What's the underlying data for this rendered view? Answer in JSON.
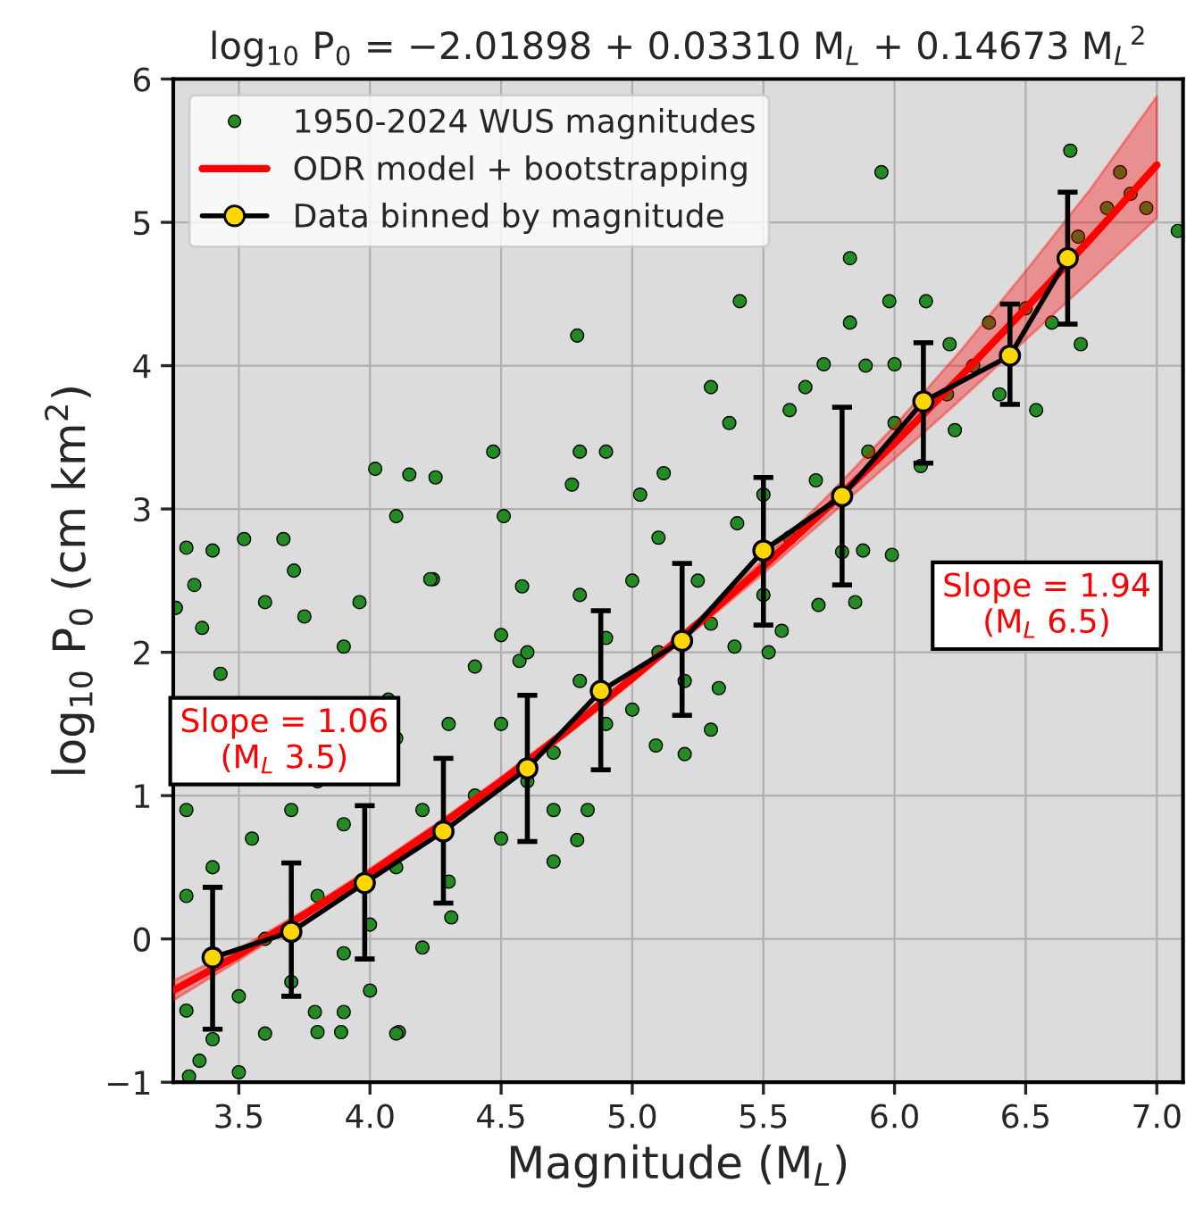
{
  "chart_data": {
    "type": "scatter",
    "title": "log$_{10}$ P$_{0}$ = −2.01898 + 0.03310 M$_{L}$ + 0.14673 M$_{L}$$^{2}$",
    "xlabel": "Magnitude (M$_{L}$)",
    "ylabel": "log$_{10}$ P$_{0}$ (cm km$^{2}$)",
    "xlim": [
      3.25,
      7.1
    ],
    "ylim": [
      -1,
      6
    ],
    "xticks": [
      3.5,
      {
        "value": 4,
        "label": "4.0"
      },
      4.5,
      {
        "value": 5,
        "label": "5.0"
      },
      5.5,
      {
        "value": 6,
        "label": "6.0"
      },
      6.5,
      {
        "value": 7,
        "label": "7.0"
      }
    ],
    "yticks": [
      {
        "value": -1,
        "label": "−1"
      },
      0,
      1,
      2,
      3,
      4,
      5,
      6
    ],
    "grid": true,
    "legend": "top left",
    "annotations": [
      "Slope = 1.06\n(M$_{L}$ 3.5)",
      "Slope = 1.94\n(M$_{L}$ 6.5)"
    ],
    "series": [
      {
        "name": "1950-2024 WUS magnitudes",
        "color": "#228b22",
        "marker": "circle",
        "x": [
          5.95,
          6.67,
          7.08,
          4.79,
          5.83,
          5.41,
          5.98,
          6.12,
          5.83,
          4.47,
          4.8,
          4.9,
          4.02,
          4.15,
          4.25,
          4.77,
          6.86,
          6.96,
          6.81,
          6.36,
          6.71,
          6.54,
          6.21,
          5.73,
          5.89,
          6.23,
          5.3,
          5.37,
          3.3,
          3.52,
          3.67,
          4.1,
          3.4,
          3.71,
          3.96,
          4.24,
          4.51,
          4.58,
          5.12,
          5.03,
          5.6,
          5.66,
          6.0,
          4.11,
          4.0,
          3.8,
          3.89,
          3.5,
          3.31,
          4.1,
          3.6,
          3.35,
          3.79,
          3.9,
          5.2,
          5.3,
          5.09,
          4.83,
          4.79,
          4.7,
          4.31,
          4.2,
          5.57,
          5.85,
          5.99,
          5.71,
          5.52,
          5.88,
          5.39,
          5.33,
          4.5,
          4.23,
          3.75,
          3.36,
          3.26,
          3.33,
          3.6,
          3.9,
          4.57,
          4.07,
          3.43,
          3.3,
          3.3,
          3.3,
          3.4,
          3.4,
          3.5,
          3.55,
          3.6,
          3.7,
          3.7,
          3.8,
          3.8,
          3.9,
          3.9,
          4.0,
          4.1,
          4.1,
          4.2,
          4.3,
          4.3,
          4.4,
          4.4,
          4.5,
          4.5,
          4.6,
          4.6,
          4.7,
          4.7,
          4.8,
          4.8,
          4.9,
          4.9,
          5.0,
          5.0,
          5.1,
          5.1,
          5.2,
          5.25,
          5.3,
          5.4,
          5.5,
          5.5,
          5.6,
          5.7,
          5.8,
          5.9,
          6.0,
          6.1,
          6.2,
          6.3,
          6.4,
          6.5,
          6.6,
          6.7,
          6.9
        ],
        "values": [
          5.35,
          5.5,
          4.94,
          4.21,
          4.75,
          4.45,
          4.45,
          4.45,
          4.3,
          3.4,
          3.4,
          3.4,
          3.28,
          3.24,
          3.22,
          3.17,
          5.35,
          5.1,
          5.1,
          4.3,
          4.15,
          3.69,
          4.15,
          4.01,
          4.0,
          3.55,
          3.85,
          3.6,
          2.73,
          2.79,
          2.79,
          2.95,
          2.71,
          2.57,
          2.35,
          2.51,
          2.95,
          2.46,
          3.25,
          3.1,
          3.69,
          3.85,
          4.01,
          -0.65,
          -0.36,
          -0.65,
          -0.65,
          -0.93,
          -0.96,
          -0.66,
          -0.66,
          -0.85,
          -0.51,
          -0.51,
          1.29,
          1.46,
          1.35,
          0.9,
          0.69,
          0.54,
          0.15,
          -0.06,
          2.15,
          2.35,
          2.68,
          2.33,
          2.0,
          2.71,
          2.04,
          1.75,
          2.12,
          2.51,
          2.25,
          2.17,
          2.31,
          2.47,
          2.35,
          2.04,
          1.94,
          1.67,
          1.85,
          -0.5,
          0.3,
          0.9,
          -0.7,
          0.5,
          -0.4,
          0.7,
          0.0,
          -0.3,
          0.9,
          0.3,
          1.1,
          -0.1,
          0.8,
          0.1,
          0.5,
          1.4,
          0.9,
          0.4,
          1.5,
          1.0,
          1.9,
          0.7,
          1.5,
          1.1,
          2.0,
          1.3,
          0.9,
          1.8,
          2.4,
          1.5,
          2.1,
          1.6,
          2.5,
          2.0,
          2.8,
          1.8,
          2.5,
          2.2,
          2.9,
          2.4,
          3.1,
          2.8,
          3.2,
          2.7,
          3.4,
          3.6,
          3.3,
          3.8,
          4.0,
          3.8,
          4.4,
          4.3,
          4.9,
          5.2
        ]
      },
      {
        "name": "ODR model + bootstrapping",
        "type": "line",
        "color": "#ff0000",
        "marker": "none",
        "line_style": "solid",
        "x": [
          3.25,
          3.5,
          3.75,
          4.0,
          4.25,
          4.5,
          4.75,
          5.0,
          5.25,
          5.5,
          5.75,
          6.0,
          6.25,
          6.5,
          6.75,
          7.0
        ],
        "values": [
          -0.36,
          -0.11,
          0.17,
          0.46,
          0.77,
          1.1,
          1.45,
          1.82,
          2.2,
          2.6,
          3.02,
          3.46,
          3.92,
          4.4,
          4.89,
          5.4
        ],
        "lower": [
          -0.43,
          -0.15,
          0.14,
          0.43,
          0.74,
          1.07,
          1.42,
          1.79,
          2.17,
          2.55,
          2.95,
          3.35,
          3.76,
          4.18,
          4.6,
          5.03
        ],
        "upper": [
          -0.29,
          -0.07,
          0.2,
          0.49,
          0.8,
          1.13,
          1.48,
          1.85,
          2.23,
          2.65,
          3.1,
          3.58,
          4.1,
          4.66,
          5.24,
          5.88
        ]
      },
      {
        "name": "Data binned by magnitude",
        "type": "line",
        "color": "#000000",
        "marker": "circle",
        "line_style": "solid",
        "colors": [
          "#ffd700",
          "#ffd700",
          "#ffd700",
          "#ffd700",
          "#ffd700",
          "#ffd700",
          "#ffd700",
          "#ffd700",
          "#ffd700",
          "#ffd700",
          "#ffd700",
          "#ffd700"
        ],
        "x": [
          3.4,
          3.7,
          3.98,
          4.28,
          4.6,
          4.88,
          5.19,
          5.5,
          5.8,
          6.11,
          6.44,
          6.66
        ],
        "values": [
          -0.13,
          0.05,
          0.39,
          0.75,
          1.19,
          1.73,
          2.08,
          2.71,
          3.09,
          3.75,
          4.07,
          4.75
        ],
        "errors": [
          [
            -0.63,
            0.36
          ],
          [
            -0.4,
            0.53
          ],
          [
            -0.14,
            0.93
          ],
          [
            0.25,
            1.26
          ],
          [
            0.68,
            1.7
          ],
          [
            1.18,
            2.29
          ],
          [
            1.56,
            2.62
          ],
          [
            2.19,
            3.22
          ],
          [
            2.47,
            3.71
          ],
          [
            3.32,
            4.16
          ],
          [
            3.73,
            4.43
          ],
          [
            4.29,
            5.21
          ]
        ]
      }
    ]
  }
}
